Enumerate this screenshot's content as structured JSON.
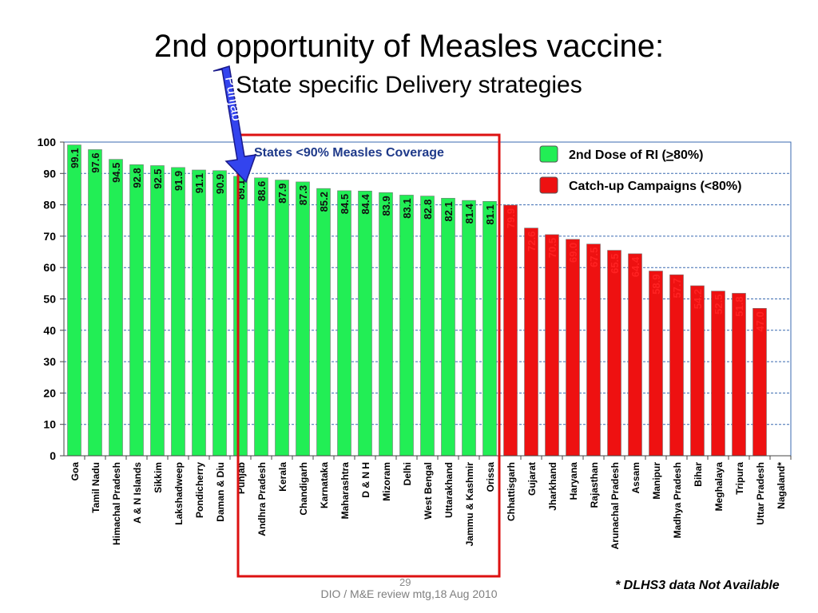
{
  "slide": {
    "title": "2nd opportunity of Measles vaccine:",
    "subtitle": "State specific Delivery strategies",
    "footer": "DIO / M&E review mtg,18 Aug 2010",
    "slide_number": "29",
    "footnote": "* DLHS3 data Not Available"
  },
  "callouts": {
    "arrow_label": "Punjab",
    "box_label": "States <90% Measles Coverage"
  },
  "colors": {
    "green": "#22ee55",
    "red": "#ee1111",
    "box": "#dd1111",
    "arrow": "#3344ee",
    "arrow_outline": "#1a1a8a",
    "grid": "#3a6ab0",
    "label_green": "#111111",
    "label_red": "#ff2222"
  },
  "chart_data": {
    "type": "bar",
    "title": "",
    "xlabel": "",
    "ylabel": "",
    "ylim": [
      0,
      100
    ],
    "yticks": [
      0,
      10,
      20,
      30,
      40,
      50,
      60,
      70,
      80,
      90,
      100
    ],
    "grid": true,
    "legend_position": "top-right",
    "categories": [
      "Goa",
      "Tamil Nadu",
      "Himachal Pradesh",
      "A & N Islands",
      "Sikkim",
      "Lakshadweep",
      "Pondicherry",
      "Daman & Diu",
      "Punjab",
      "Andhra Pradesh",
      "Kerala",
      "Chandigarh",
      "Karnataka",
      "Maharashtra",
      "D & N H",
      "Mizoram",
      "Delhi",
      "West Bengal",
      "Uttarakhand",
      "Jammu & Kashmir",
      "Orissa",
      "Chhattisgarh",
      "Gujarat",
      "Jharkhand",
      "Haryana",
      "Rajasthan",
      "Arunachal Pradesh",
      "Assam",
      "Manipur",
      "Madhya Pradesh",
      "Bihar",
      "Meghalaya",
      "Tripura",
      "Uttar Pradesh",
      "Nagaland*"
    ],
    "values": [
      99.1,
      97.6,
      94.5,
      92.8,
      92.5,
      91.9,
      91.1,
      90.9,
      89.1,
      88.6,
      87.9,
      87.3,
      85.2,
      84.5,
      84.4,
      83.9,
      83.1,
      82.8,
      82.1,
      81.4,
      81.1,
      79.9,
      72.6,
      70.5,
      69.0,
      67.5,
      65.5,
      64.4,
      58.9,
      57.7,
      54.2,
      52.5,
      51.8,
      47.0,
      null
    ],
    "value_labels": [
      "99.1",
      "97.6",
      "94.5",
      "92.8",
      "92.5",
      "91.9",
      "91.1",
      "90.9",
      "89.1",
      "88.6",
      "87.9",
      "87.3",
      "85.2",
      "84.5",
      "84.4",
      "83.9",
      "83.1",
      "82.8",
      "82.1",
      "81.4",
      "81.1",
      "79.9",
      "72.6",
      "70.5",
      "69.0",
      "67.5",
      "65.5",
      "64.4",
      "58.9",
      "57.7",
      "54.2",
      "52.5",
      "51.8",
      "47.0",
      ""
    ],
    "groups": [
      "green",
      "green",
      "green",
      "green",
      "green",
      "green",
      "green",
      "green",
      "green",
      "green",
      "green",
      "green",
      "green",
      "green",
      "green",
      "green",
      "green",
      "green",
      "green",
      "green",
      "green",
      "red",
      "red",
      "red",
      "red",
      "red",
      "red",
      "red",
      "red",
      "red",
      "red",
      "red",
      "red",
      "red",
      "none"
    ],
    "series": [
      {
        "name": "2nd Dose of RI (>80%)",
        "color_key": "green",
        "legend_prefix": "2nd Dose of RI (",
        "legend_underlined": ">",
        "legend_suffix": "80%)"
      },
      {
        "name": "Catch-up Campaigns (<80%)",
        "color_key": "red"
      }
    ]
  }
}
